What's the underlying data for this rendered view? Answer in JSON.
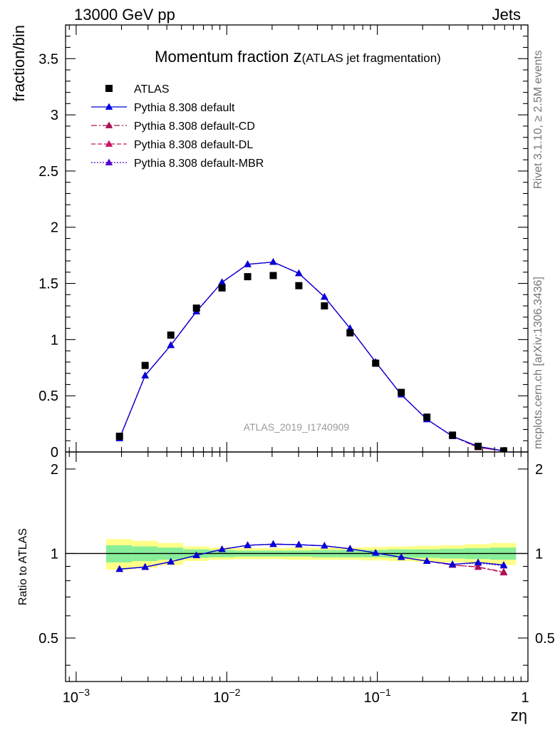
{
  "header": {
    "left": "13000 GeV pp",
    "right": "Jets"
  },
  "side_text": {
    "rivet": "Rivet 3.1.10, ≥ 2.5M events",
    "mcplots": "mcplots.cern.ch [arXiv:1306.3436]"
  },
  "chart_data": [
    {
      "type": "scatter",
      "panel": "main",
      "title_main": "Momentum fraction ",
      "title_symbol": "z",
      "title_sub": "(ATLAS jet fragmentation)",
      "ylabel": "fraction/bin",
      "xlabel": "zη",
      "watermark": "ATLAS_2019_I1740909",
      "x_scale": "log",
      "xlim": [
        0.00085,
        1.0
      ],
      "ylim": [
        0,
        3.8
      ],
      "x_ticks": [
        {
          "value": 0.001,
          "label_base": "10",
          "label_exp": "−3"
        },
        {
          "value": 0.01,
          "label_base": "10",
          "label_exp": "−2"
        },
        {
          "value": 0.1,
          "label_base": "10",
          "label_exp": "−1"
        },
        {
          "value": 1,
          "label": "1"
        }
      ],
      "y_ticks": [
        {
          "value": 0,
          "label": "0"
        },
        {
          "value": 0.5,
          "label": "0.5"
        },
        {
          "value": 1,
          "label": "1"
        },
        {
          "value": 1.5,
          "label": "1.5"
        },
        {
          "value": 2,
          "label": "2"
        },
        {
          "value": 2.5,
          "label": "2.5"
        },
        {
          "value": 3,
          "label": "3"
        },
        {
          "value": 3.5,
          "label": "3.5"
        }
      ],
      "legend_position": "top-left",
      "x": [
        0.00194,
        0.00287,
        0.00425,
        0.00629,
        0.0093,
        0.01376,
        0.02035,
        0.0301,
        0.04453,
        0.06588,
        0.09746,
        0.14417,
        0.21328,
        0.3155,
        0.46673,
        0.69045
      ],
      "series": [
        {
          "name": "ATLAS",
          "style": "data",
          "color": "#000000",
          "values": [
            0.14,
            0.77,
            1.04,
            1.28,
            1.46,
            1.56,
            1.57,
            1.48,
            1.3,
            1.06,
            0.79,
            0.53,
            0.31,
            0.15,
            0.05,
            0.01
          ]
        },
        {
          "name": "Pythia 8.308 default",
          "style": "solid",
          "color": "#0000dd",
          "values": [
            0.12,
            0.68,
            0.95,
            1.25,
            1.51,
            1.67,
            1.69,
            1.59,
            1.38,
            1.1,
            0.8,
            0.51,
            0.29,
            0.14,
            0.05,
            0.01
          ]
        },
        {
          "name": "Pythia 8.308 default-CD",
          "style": "dashdot",
          "color": "#aa1155",
          "values": [
            0.12,
            0.68,
            0.95,
            1.25,
            1.51,
            1.67,
            1.69,
            1.59,
            1.38,
            1.1,
            0.8,
            0.51,
            0.29,
            0.14,
            0.04,
            0.01
          ]
        },
        {
          "name": "Pythia 8.308 default-DL",
          "style": "dashed",
          "color": "#cc1166",
          "values": [
            0.12,
            0.68,
            0.95,
            1.25,
            1.51,
            1.67,
            1.69,
            1.59,
            1.38,
            1.1,
            0.8,
            0.51,
            0.29,
            0.14,
            0.04,
            0.01
          ]
        },
        {
          "name": "Pythia 8.308 default-MBR",
          "style": "dotted",
          "color": "#5500cc",
          "values": [
            0.12,
            0.68,
            0.95,
            1.25,
            1.51,
            1.67,
            1.69,
            1.59,
            1.38,
            1.1,
            0.8,
            0.51,
            0.29,
            0.14,
            0.05,
            0.01
          ]
        }
      ]
    },
    {
      "type": "line",
      "panel": "ratio",
      "ylabel": "Ratio to ATLAS",
      "x_scale": "log",
      "xlim": [
        0.00085,
        1.0
      ],
      "ylim": [
        0.35,
        2.3
      ],
      "y_ticks": [
        {
          "value": 0.5,
          "label": "0.5"
        },
        {
          "value": 1,
          "label": "1"
        },
        {
          "value": 2,
          "label": "2"
        }
      ],
      "bin_edges": [
        0.00158,
        0.00235,
        0.00347,
        0.00514,
        0.0076,
        0.01124,
        0.01663,
        0.0246,
        0.03639,
        0.05383,
        0.07962,
        0.11778,
        0.17422,
        0.25771,
        0.38121,
        0.5639,
        0.83412
      ],
      "band_yellow": [
        0.125,
        0.11,
        0.09,
        0.06,
        0.05,
        0.045,
        0.045,
        0.05,
        0.05,
        0.05,
        0.055,
        0.06,
        0.065,
        0.07,
        0.08,
        0.09
      ],
      "band_green": [
        0.07,
        0.06,
        0.05,
        0.035,
        0.03,
        0.025,
        0.025,
        0.025,
        0.03,
        0.03,
        0.03,
        0.035,
        0.035,
        0.04,
        0.045,
        0.05
      ],
      "x": [
        0.00194,
        0.00287,
        0.00425,
        0.00629,
        0.0093,
        0.01376,
        0.02035,
        0.0301,
        0.04453,
        0.06588,
        0.09746,
        0.14417,
        0.21328,
        0.3155,
        0.46673,
        0.69045
      ],
      "series": [
        {
          "name": "Pythia 8.308 default",
          "style": "solid",
          "color": "#0000dd",
          "values": [
            0.88,
            0.895,
            0.935,
            0.985,
            1.035,
            1.07,
            1.08,
            1.075,
            1.065,
            1.04,
            1.005,
            0.97,
            0.94,
            0.915,
            0.93,
            0.91
          ]
        },
        {
          "name": "Pythia 8.308 default-CD",
          "style": "dashdot",
          "color": "#aa1155",
          "values": [
            0.88,
            0.895,
            0.935,
            0.985,
            1.035,
            1.07,
            1.08,
            1.075,
            1.065,
            1.04,
            1.005,
            0.97,
            0.94,
            0.91,
            0.895,
            0.86
          ]
        },
        {
          "name": "Pythia 8.308 default-DL",
          "style": "dashed",
          "color": "#cc1166",
          "values": [
            0.88,
            0.895,
            0.935,
            0.985,
            1.035,
            1.07,
            1.08,
            1.075,
            1.065,
            1.04,
            1.005,
            0.97,
            0.94,
            0.91,
            0.895,
            0.855
          ]
        },
        {
          "name": "Pythia 8.308 default-MBR",
          "style": "dotted",
          "color": "#5500cc",
          "values": [
            0.88,
            0.895,
            0.935,
            0.985,
            1.035,
            1.07,
            1.08,
            1.075,
            1.065,
            1.04,
            1.005,
            0.97,
            0.94,
            0.915,
            0.925,
            0.905
          ]
        }
      ]
    }
  ]
}
